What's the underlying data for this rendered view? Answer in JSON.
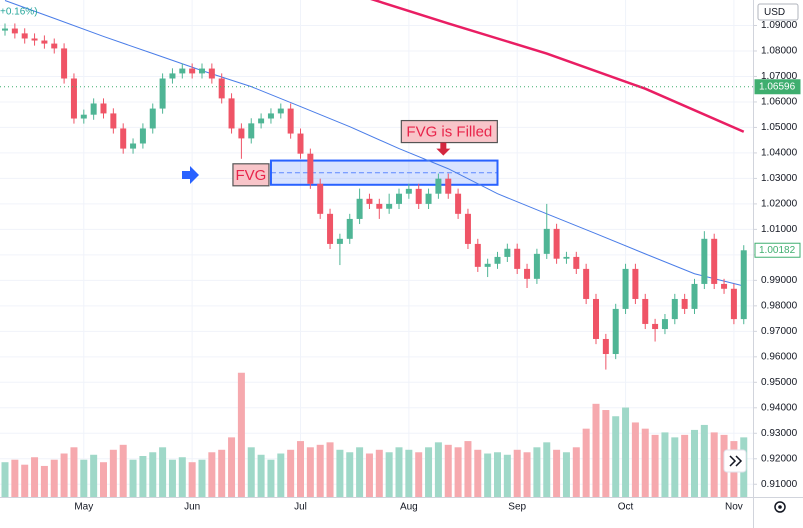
{
  "chart_data": {
    "type": "candlestick",
    "change_label": "+0.16%)",
    "currency": "USD",
    "categories": [
      null,
      null,
      null,
      null,
      null,
      null,
      null,
      null,
      "May",
      null,
      null,
      null,
      null,
      null,
      null,
      null,
      null,
      null,
      null,
      "Jun",
      null,
      null,
      null,
      null,
      null,
      null,
      null,
      null,
      null,
      null,
      "Jul",
      null,
      null,
      null,
      null,
      null,
      null,
      null,
      null,
      null,
      null,
      "Aug",
      null,
      null,
      null,
      null,
      null,
      null,
      null,
      null,
      null,
      null,
      "Sep",
      null,
      null,
      null,
      null,
      null,
      null,
      null,
      null,
      null,
      null,
      "Oct",
      null,
      null,
      null,
      null,
      null,
      null,
      null,
      null,
      null,
      null,
      "Nov",
      null
    ],
    "candles": [
      [
        1.088,
        1.0908,
        1.086,
        1.0888
      ],
      [
        1.0888,
        1.0908,
        1.0849,
        1.0869
      ],
      [
        1.0869,
        1.0889,
        1.0829,
        1.0849
      ],
      [
        1.0849,
        1.0869,
        1.0821,
        1.0841
      ],
      [
        1.0841,
        1.0861,
        1.0809,
        1.0829
      ],
      [
        1.0829,
        1.0849,
        1.079,
        1.081
      ],
      [
        1.081,
        1.083,
        1.0672,
        1.0692
      ],
      [
        1.0692,
        1.0712,
        1.0515,
        1.0535
      ],
      [
        1.0535,
        1.057,
        1.0515,
        1.055
      ],
      [
        1.055,
        1.0614,
        1.053,
        1.0594
      ],
      [
        1.0594,
        1.0614,
        1.0535,
        1.0555
      ],
      [
        1.0555,
        1.0575,
        1.0476,
        1.0496
      ],
      [
        1.0496,
        1.0516,
        1.0397,
        1.0417
      ],
      [
        1.0417,
        1.0457,
        1.0397,
        1.0437
      ],
      [
        1.0437,
        1.0516,
        1.0417,
        1.0496
      ],
      [
        1.0496,
        1.0594,
        1.0476,
        1.0574
      ],
      [
        1.0574,
        1.0712,
        1.0554,
        1.0692
      ],
      [
        1.0692,
        1.0732,
        1.0672,
        1.0712
      ],
      [
        1.0712,
        1.0751,
        1.0692,
        1.0731
      ],
      [
        1.0731,
        1.0751,
        1.0692,
        1.0712
      ],
      [
        1.0712,
        1.0751,
        1.0692,
        1.0731
      ],
      [
        1.0731,
        1.0751,
        1.0672,
        1.0692
      ],
      [
        1.0692,
        1.0712,
        1.0594,
        1.0614
      ],
      [
        1.0614,
        1.0634,
        1.0476,
        1.0496
      ],
      [
        1.0496,
        1.0516,
        1.0377,
        1.0457
      ],
      [
        1.0457,
        1.0536,
        1.0437,
        1.0516
      ],
      [
        1.0516,
        1.0555,
        1.0496,
        1.0535
      ],
      [
        1.0535,
        1.0575,
        1.0515,
        1.0555
      ],
      [
        1.0555,
        1.0594,
        1.0535,
        1.0574
      ],
      [
        1.0574,
        1.0594,
        1.0456,
        1.0476
      ],
      [
        1.0476,
        1.0496,
        1.0377,
        1.0397
      ],
      [
        1.0397,
        1.0417,
        1.0259,
        1.0279
      ],
      [
        1.0279,
        1.0299,
        1.0141,
        1.0161
      ],
      [
        1.0161,
        1.0181,
        1.0023,
        1.0043
      ],
      [
        1.0043,
        1.0083,
        0.996,
        1.0063
      ],
      [
        1.0063,
        1.0161,
        1.0043,
        1.0141
      ],
      [
        1.0141,
        1.026,
        1.0121,
        1.022
      ],
      [
        1.022,
        1.024,
        1.018,
        1.02
      ],
      [
        1.02,
        1.022,
        1.0141,
        1.0181
      ],
      [
        1.0181,
        1.024,
        1.0161,
        1.02
      ],
      [
        1.02,
        1.026,
        1.018,
        1.024
      ],
      [
        1.024,
        1.0279,
        1.022,
        1.0259
      ],
      [
        1.0259,
        1.0279,
        1.018,
        1.02
      ],
      [
        1.02,
        1.026,
        1.018,
        1.024
      ],
      [
        1.024,
        1.0319,
        1.022,
        1.0299
      ],
      [
        1.0299,
        1.0319,
        1.022,
        1.024
      ],
      [
        1.024,
        1.026,
        1.0141,
        1.0161
      ],
      [
        1.0161,
        1.0181,
        1.0023,
        1.0043
      ],
      [
        1.0043,
        1.0063,
        0.9933,
        0.9953
      ],
      [
        0.9953,
        0.9985,
        0.9913,
        0.9965
      ],
      [
        0.9965,
        1.0012,
        0.9945,
        0.9992
      ],
      [
        0.9992,
        1.0044,
        0.9972,
        1.0024
      ],
      [
        1.0024,
        1.0044,
        0.9925,
        0.9945
      ],
      [
        0.9945,
        0.9965,
        0.987,
        0.9906
      ],
      [
        0.9906,
        1.0024,
        0.9886,
        1.0004
      ],
      [
        1.0004,
        1.02,
        0.9984,
        1.0102
      ],
      [
        1.0102,
        1.0122,
        0.9965,
        0.9985
      ],
      [
        0.9985,
        1.0012,
        0.9965,
        0.9992
      ],
      [
        0.9992,
        1.0012,
        0.9925,
        0.9945
      ],
      [
        0.9945,
        0.9965,
        0.9807,
        0.9827
      ],
      [
        0.9827,
        0.9847,
        0.965,
        0.967
      ],
      [
        0.967,
        0.969,
        0.955,
        0.9611
      ],
      [
        0.9611,
        0.9808,
        0.9591,
        0.9788
      ],
      [
        0.9788,
        0.9965,
        0.9768,
        0.9945
      ],
      [
        0.9945,
        0.9965,
        0.9807,
        0.9827
      ],
      [
        0.9827,
        0.9847,
        0.9709,
        0.9729
      ],
      [
        0.9729,
        0.9749,
        0.966,
        0.9709
      ],
      [
        0.9709,
        0.9768,
        0.9689,
        0.9748
      ],
      [
        0.9748,
        0.9847,
        0.9728,
        0.9827
      ],
      [
        0.9827,
        0.9847,
        0.9768,
        0.9788
      ],
      [
        0.9788,
        0.9906,
        0.9768,
        0.9886
      ],
      [
        0.9886,
        1.0093,
        0.9866,
        1.0063
      ],
      [
        1.0063,
        1.0083,
        0.9866,
        0.9886
      ],
      [
        0.9886,
        0.9906,
        0.9847,
        0.9867
      ],
      [
        0.9867,
        0.9887,
        0.9728,
        0.9748
      ],
      [
        0.9748,
        1.0038,
        0.9728,
        1.0018
      ]
    ],
    "up_color": "#4fb595",
    "down_color": "#ef5466",
    "volume": {
      "values": [
        28,
        30,
        26,
        32,
        25,
        30,
        35,
        40,
        30,
        34,
        28,
        38,
        42,
        30,
        33,
        36,
        40,
        30,
        32,
        28,
        30,
        36,
        38,
        48,
        100,
        40,
        34,
        30,
        35,
        38,
        45,
        40,
        42,
        44,
        38,
        36,
        40,
        35,
        38,
        36,
        40,
        38,
        36,
        40,
        44,
        42,
        40,
        45,
        38,
        35,
        36,
        34,
        38,
        36,
        40,
        44,
        38,
        36,
        40,
        55,
        75,
        70,
        65,
        72,
        60,
        55,
        50,
        52,
        48,
        50,
        54,
        58,
        52,
        50,
        45,
        48
      ],
      "lim": [
        0,
        400
      ],
      "up_color": "#9fd8c8",
      "down_color": "#f6a9ae"
    },
    "lines": [
      {
        "color": "#4a7de8",
        "x": [
          0,
          5,
          10,
          15,
          20,
          25,
          30,
          35,
          40,
          45,
          50,
          55,
          60,
          65,
          70,
          75
        ],
        "values": [
          1.0998,
          1.0928,
          1.0857,
          1.079,
          1.0723,
          1.066,
          1.0582,
          1.0503,
          1.0417,
          1.0338,
          1.024,
          1.0161,
          1.0083,
          1.0004,
          0.9926,
          0.9878
        ]
      },
      {
        "color": "#e91e63",
        "x": [
          37,
          45,
          55,
          65,
          75
        ],
        "values": [
          1.1006,
          1.0908,
          1.079,
          1.0652,
          1.0483
        ]
      }
    ],
    "ylim": [
      0.905,
      1.1
    ],
    "yticks": [
      {
        "value": 1.09,
        "label": "1.09000"
      },
      {
        "value": 1.08,
        "label": "1.08000"
      },
      {
        "value": 1.07,
        "label": "1.07000"
      },
      {
        "value": 1.06,
        "label": "1.06000"
      },
      {
        "value": 1.05,
        "label": "1.05000"
      },
      {
        "value": 1.04,
        "label": "1.04000"
      },
      {
        "value": 1.03,
        "label": "1.03000"
      },
      {
        "value": 1.02,
        "label": "1.02000"
      },
      {
        "value": 1.01,
        "label": "1.01000"
      },
      {
        "value": 1.0,
        "label": "1.00000"
      },
      {
        "value": 0.99,
        "label": "0.99000"
      },
      {
        "value": 0.98,
        "label": "0.98000"
      },
      {
        "value": 0.97,
        "label": "0.97000"
      },
      {
        "value": 0.96,
        "label": "0.96000"
      },
      {
        "value": 0.95,
        "label": "0.95000"
      },
      {
        "value": 0.94,
        "label": "0.94000"
      },
      {
        "value": 0.93,
        "label": "0.93000"
      },
      {
        "value": 0.92,
        "label": "0.92000"
      },
      {
        "value": 0.91,
        "label": "0.91000"
      }
    ],
    "price_labels": [
      {
        "value": 1.06596,
        "label": "1.06596",
        "color": "#3fae6f",
        "filled": true,
        "dotted": true
      },
      {
        "value": 1.00182,
        "label": "1.00182",
        "color": "#3fae6f",
        "filled": false,
        "dotted": false
      }
    ],
    "fvg": {
      "top": 1.037,
      "bottom": 1.0275,
      "mid": 1.0322,
      "x_start": 27,
      "x_end": 50,
      "color": "#2962ff",
      "label": "FVG",
      "filled_label": "FVG is Filled"
    },
    "grid": true
  }
}
